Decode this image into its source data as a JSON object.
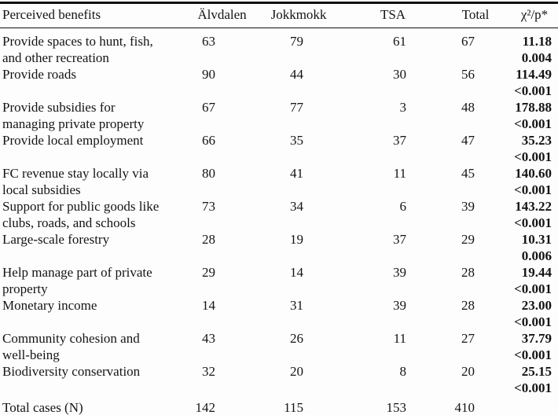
{
  "table": {
    "columns": [
      "Perceived benefits",
      "Älvdalen",
      "Jokkmokk",
      "TSA",
      "Total",
      "χ²/p*"
    ],
    "rows": [
      {
        "label": "Provide spaces to hunt, fish,\nand other recreation",
        "values": [
          "63",
          "79",
          "61",
          "67"
        ],
        "chi": "11.18",
        "p": "0.004"
      },
      {
        "label": "Provide roads",
        "values": [
          "90",
          "44",
          "30",
          "56"
        ],
        "chi": "114.49",
        "p": "<0.001"
      },
      {
        "label": "Provide subsidies for\nmanaging private property",
        "values": [
          "67",
          "77",
          "3",
          "48"
        ],
        "chi": "178.88",
        "p": "<0.001"
      },
      {
        "label": "Provide local employment",
        "values": [
          "66",
          "35",
          "37",
          "47"
        ],
        "chi": "35.23",
        "p": "<0.001"
      },
      {
        "label": "FC revenue stay locally via\nlocal subsidies",
        "values": [
          "80",
          "41",
          "11",
          "45"
        ],
        "chi": "140.60",
        "p": "<0.001"
      },
      {
        "label": "Support for public goods like\nclubs, roads, and schools",
        "values": [
          "73",
          "34",
          "6",
          "39"
        ],
        "chi": "143.22",
        "p": "<0.001"
      },
      {
        "label": "Large-scale forestry",
        "values": [
          "28",
          "19",
          "37",
          "29"
        ],
        "chi": "10.31",
        "p": "0.006"
      },
      {
        "label": "Help manage part of private\nproperty",
        "values": [
          "29",
          "14",
          "39",
          "28"
        ],
        "chi": "19.44",
        "p": "<0.001"
      },
      {
        "label": "Monetary income",
        "values": [
          "14",
          "31",
          "39",
          "28"
        ],
        "chi": "23.00",
        "p": "<0.001"
      },
      {
        "label": "Community cohesion and\nwell-being",
        "values": [
          "43",
          "26",
          "11",
          "27"
        ],
        "chi": "37.79",
        "p": "<0.001"
      },
      {
        "label": "Biodiversity conservation",
        "values": [
          "32",
          "20",
          "8",
          "20"
        ],
        "chi": "25.15",
        "p": "<0.001"
      }
    ],
    "total_row": {
      "label": "Total cases (N)",
      "values": [
        "142",
        "115",
        "153",
        "410"
      ],
      "chi": "",
      "p": ""
    }
  }
}
